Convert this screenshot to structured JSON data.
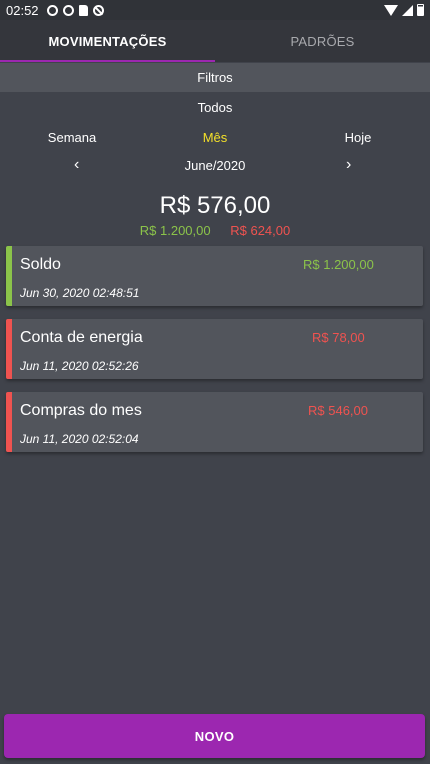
{
  "status_bar": {
    "time": "02:52",
    "left_icons": [
      "notification-circle-icon",
      "notification-circle-icon",
      "sd-card-icon",
      "blocked-icon"
    ],
    "right_icons": [
      "wifi-icon",
      "signal-icon",
      "battery-icon"
    ]
  },
  "tabs": [
    {
      "label": "MOVIMENTAÇÕES",
      "active": true
    },
    {
      "label": "PADRÕES",
      "active": false
    }
  ],
  "filters": {
    "label": "Filtros",
    "type_filter": "Todos",
    "periods": {
      "week": "Semana",
      "month": "Mês",
      "today": "Hoje"
    },
    "selected_period": "month",
    "current_month": "June/2020",
    "prev_symbol": "‹",
    "next_symbol": "›"
  },
  "summary": {
    "balance": "R$ 576,00",
    "income": "R$ 1.200,00",
    "expense": "R$ 624,00"
  },
  "colors": {
    "accent": "#9c27b0",
    "income": "#8bc34a",
    "expense": "#ef5350",
    "selected_period": "#f4e02a"
  },
  "transactions": [
    {
      "title": "Soldo",
      "amount": "R$ 1.200,00",
      "date": "Jun 30, 2020 02:48:51",
      "kind": "income"
    },
    {
      "title": "Conta de energia",
      "amount": "R$ 78,00",
      "date": "Jun 11, 2020 02:52:26",
      "kind": "expense"
    },
    {
      "title": "Compras do mes",
      "amount": "R$ 546,00",
      "date": "Jun 11, 2020 02:52:04",
      "kind": "expense"
    }
  ],
  "actions": {
    "new_label": "NOVO"
  }
}
